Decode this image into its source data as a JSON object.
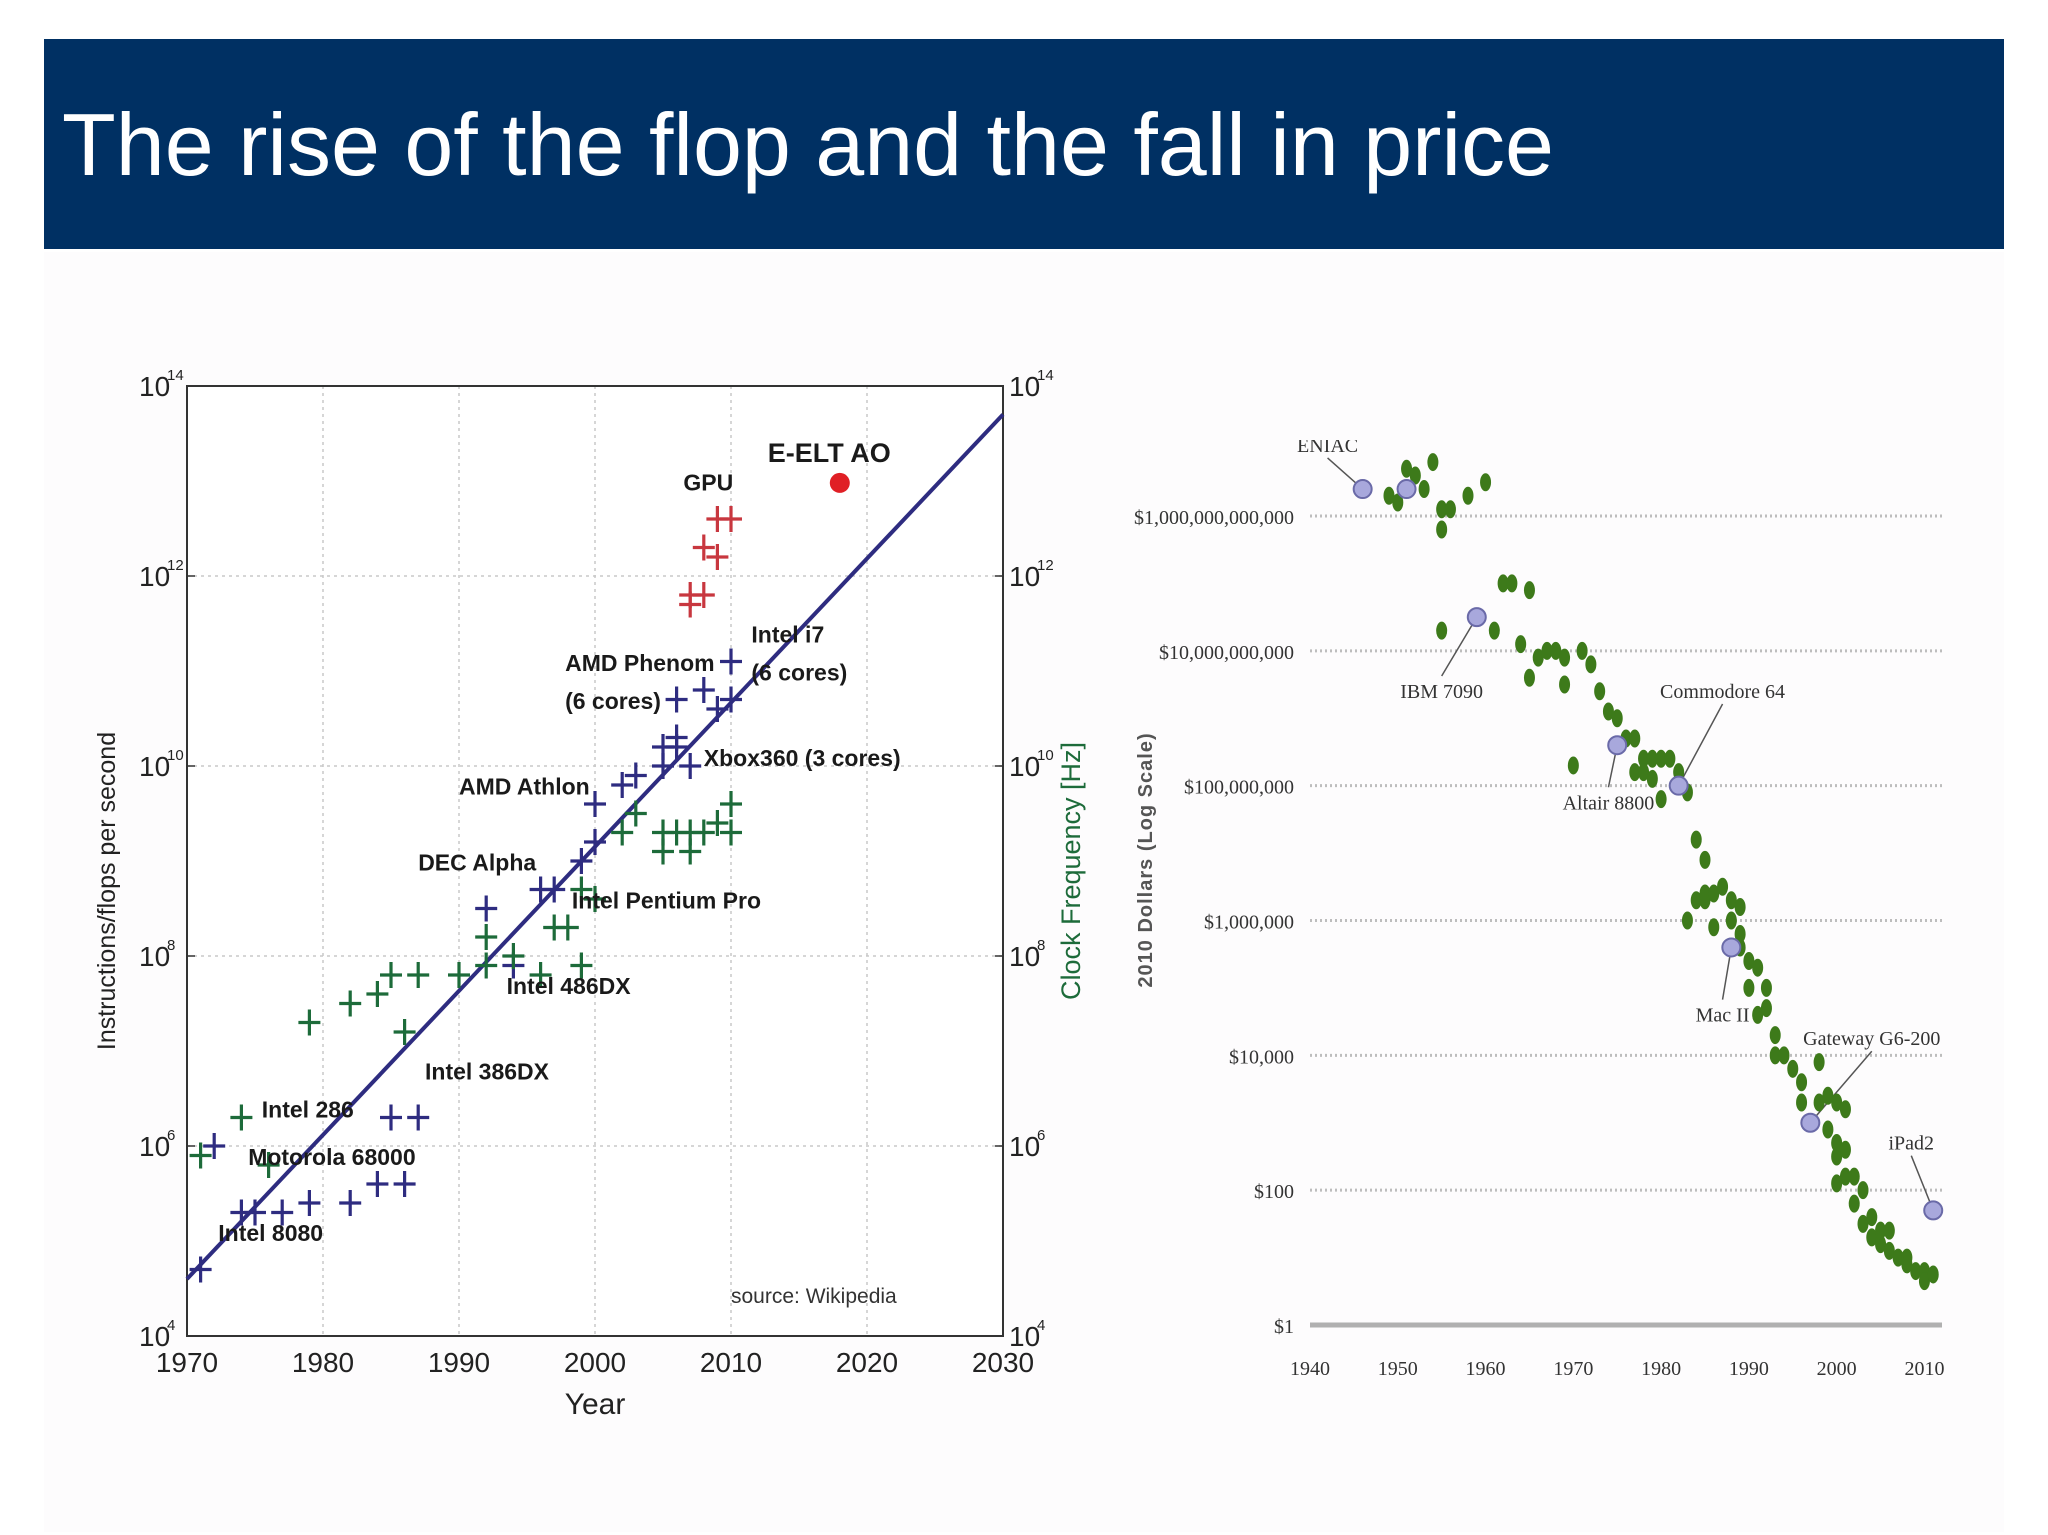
{
  "slide": {
    "title": "The rise of the flop and the fall in price"
  },
  "colors": {
    "title_bar": "#003063",
    "cpu_flops": "#2e2c80",
    "clock_freq": "#1d6b3a",
    "gpu": "#c8373f",
    "trend_line": "#2e2c80",
    "eelt_point": "#e01f25",
    "price_points": "#3d7a1a",
    "price_highlight": "#a8a8dc"
  },
  "chart_data": [
    {
      "type": "scatter",
      "ylabel": "Instructions/flops per second",
      "y2label": "Clock Frequency [Hz]",
      "xlabel": "Year",
      "xlim": [
        1970,
        2030
      ],
      "ylim_log10": [
        4,
        14
      ],
      "y2lim_log10": [
        4,
        14
      ],
      "x_ticks": [
        "1970",
        "1980",
        "1990",
        "2000",
        "2010",
        "2020",
        "2030"
      ],
      "y_tick_exponents": [
        "4",
        "6",
        "8",
        "10",
        "12",
        "14"
      ],
      "y_tick_base": "10",
      "y_scale": "log",
      "grid": true,
      "source": "source: Wikipedia",
      "trend_line": {
        "from": [
          1970,
          4.6
        ],
        "to": [
          2030,
          13.7
        ]
      },
      "series": [
        {
          "marker": "plus",
          "color": "#2e2c80",
          "points": [
            [
              1971,
              4.7
            ],
            [
              1972,
              6.0
            ],
            [
              1974,
              5.3
            ],
            [
              1975,
              5.3
            ],
            [
              1977,
              5.3
            ],
            [
              1979,
              5.4
            ],
            [
              1982,
              5.4
            ],
            [
              1984,
              5.6
            ],
            [
              1985,
              6.3
            ],
            [
              1986,
              5.6
            ],
            [
              1987,
              6.3
            ],
            [
              1992,
              8.5
            ],
            [
              1994,
              7.9
            ],
            [
              1996,
              8.7
            ],
            [
              1997,
              8.7
            ],
            [
              1999,
              9.0
            ],
            [
              2000,
              9.2
            ],
            [
              2000,
              9.6
            ],
            [
              2002,
              9.8
            ],
            [
              2003,
              9.9
            ],
            [
              2005,
              10.0
            ],
            [
              2005,
              10.2
            ],
            [
              2006,
              10.2
            ],
            [
              2006,
              10.7
            ],
            [
              2006,
              10.3
            ],
            [
              2007,
              10.0
            ],
            [
              2008,
              10.8
            ],
            [
              2009,
              10.6
            ],
            [
              2010,
              10.7
            ],
            [
              2010,
              11.1
            ]
          ]
        },
        {
          "marker": "plus",
          "color": "#1d6b3a",
          "points": [
            [
              1971,
              5.9
            ],
            [
              1974,
              6.3
            ],
            [
              1976,
              5.8
            ],
            [
              1979,
              7.3
            ],
            [
              1982,
              7.5
            ],
            [
              1984,
              7.6
            ],
            [
              1985,
              7.8
            ],
            [
              1986,
              7.2
            ],
            [
              1987,
              7.8
            ],
            [
              1990,
              7.8
            ],
            [
              1992,
              8.2
            ],
            [
              1992,
              7.9
            ],
            [
              1994,
              8.0
            ],
            [
              1996,
              7.8
            ],
            [
              1997,
              8.3
            ],
            [
              1998,
              8.3
            ],
            [
              1999,
              8.7
            ],
            [
              1999,
              7.9
            ],
            [
              2000,
              8.6
            ],
            [
              2002,
              9.3
            ],
            [
              2003,
              9.5
            ],
            [
              2005,
              9.3
            ],
            [
              2005,
              9.1
            ],
            [
              2006,
              9.3
            ],
            [
              2007,
              9.1
            ],
            [
              2007,
              9.3
            ],
            [
              2008,
              9.3
            ],
            [
              2009,
              9.4
            ],
            [
              2010,
              9.3
            ],
            [
              2010,
              9.6
            ]
          ]
        },
        {
          "marker": "plus",
          "color": "#c8373f",
          "points": [
            [
              2007,
              11.7
            ],
            [
              2007,
              11.8
            ],
            [
              2008,
              11.8
            ],
            [
              2008,
              12.3
            ],
            [
              2009,
              12.2
            ],
            [
              2009,
              12.6
            ],
            [
              2010,
              12.6
            ]
          ]
        },
        {
          "marker": "dot",
          "color": "#e01f25",
          "points": [
            [
              2018,
              12.98
            ]
          ]
        }
      ],
      "annotations": [
        {
          "text": "E-ELT AO",
          "x": 2012.7,
          "y": 13.2,
          "size": 27
        },
        {
          "text": "GPU",
          "x": 2006.5,
          "y": 12.9,
          "size": 23
        },
        {
          "text": "Intel i7",
          "x": 2011.5,
          "y": 11.3,
          "size": 23
        },
        {
          "text": "(6 cores)",
          "x": 2011.5,
          "y": 10.9,
          "size": 23
        },
        {
          "text": "AMD Phenom",
          "x": 1997.8,
          "y": 11.0,
          "size": 23
        },
        {
          "text": "(6 cores)",
          "x": 1997.8,
          "y": 10.6,
          "size": 23
        },
        {
          "text": "Xbox360 (3 cores)",
          "x": 2008.0,
          "y": 10.0,
          "size": 23
        },
        {
          "text": "AMD Athlon",
          "x": 1990.0,
          "y": 9.7,
          "size": 23
        },
        {
          "text": "DEC Alpha",
          "x": 1987.0,
          "y": 8.9,
          "size": 23
        },
        {
          "text": "Intel Pentium Pro",
          "x": 1998.3,
          "y": 8.5,
          "size": 23
        },
        {
          "text": "Intel 486DX",
          "x": 1993.5,
          "y": 7.6,
          "size": 23
        },
        {
          "text": "Intel 386DX",
          "x": 1987.5,
          "y": 6.7,
          "size": 23
        },
        {
          "text": "Intel 286",
          "x": 1975.5,
          "y": 6.3,
          "size": 23
        },
        {
          "text": "Motorola 68000",
          "x": 1974.5,
          "y": 5.8,
          "size": 23
        },
        {
          "text": "Intel 8080",
          "x": 1972.3,
          "y": 5.0,
          "size": 23
        }
      ]
    },
    {
      "type": "scatter",
      "ylabel": "2010 Dollars (Log Scale)",
      "xlabel": "",
      "xlim": [
        1940,
        2012
      ],
      "x_ticks": [
        "1940",
        "1950",
        "1960",
        "1970",
        "1980",
        "1990",
        "2000",
        "2010"
      ],
      "y_ticks": [
        "$1,000,000,000,000",
        "$10,000,000,000",
        "$100,000,000",
        "$1,000,000",
        "$10,000",
        "$100",
        "$1"
      ],
      "y_scale": "log",
      "grid": true,
      "series": [
        {
          "marker": "dot",
          "color": "#3d7a1a",
          "points": [
            [
              1949,
              12.3
            ],
            [
              1950,
              12.2
            ],
            [
              1951,
              12.7
            ],
            [
              1952,
              12.6
            ],
            [
              1953,
              12.4
            ],
            [
              1954,
              12.8
            ],
            [
              1955,
              12.1
            ],
            [
              1955,
              11.8
            ],
            [
              1956,
              12.1
            ],
            [
              1958,
              12.3
            ],
            [
              1960,
              12.5
            ],
            [
              1955,
              10.3
            ],
            [
              1961,
              10.3
            ],
            [
              1962,
              11.0
            ],
            [
              1963,
              11.0
            ],
            [
              1964,
              10.1
            ],
            [
              1965,
              10.9
            ],
            [
              1965,
              9.6
            ],
            [
              1966,
              9.9
            ],
            [
              1967,
              10.0
            ],
            [
              1968,
              10.0
            ],
            [
              1969,
              9.5
            ],
            [
              1969,
              9.9
            ],
            [
              1970,
              8.3
            ],
            [
              1971,
              10.0
            ],
            [
              1972,
              9.8
            ],
            [
              1973,
              9.4
            ],
            [
              1974,
              9.1
            ],
            [
              1975,
              8.6
            ],
            [
              1975,
              9.0
            ],
            [
              1976,
              8.7
            ],
            [
              1977,
              8.2
            ],
            [
              1977,
              8.7
            ],
            [
              1978,
              8.4
            ],
            [
              1978,
              8.2
            ],
            [
              1979,
              8.1
            ],
            [
              1979,
              8.4
            ],
            [
              1980,
              7.8
            ],
            [
              1980,
              8.4
            ],
            [
              1981,
              8.4
            ],
            [
              1982,
              8.2
            ],
            [
              1983,
              7.9
            ],
            [
              1983,
              6.0
            ],
            [
              1984,
              6.3
            ],
            [
              1984,
              7.2
            ],
            [
              1985,
              6.3
            ],
            [
              1985,
              6.4
            ],
            [
              1985,
              6.9
            ],
            [
              1986,
              6.4
            ],
            [
              1986,
              5.9
            ],
            [
              1987,
              6.5
            ],
            [
              1988,
              6.0
            ],
            [
              1988,
              6.3
            ],
            [
              1989,
              5.8
            ],
            [
              1989,
              6.2
            ],
            [
              1989,
              5.6
            ],
            [
              1990,
              5.0
            ],
            [
              1990,
              5.4
            ],
            [
              1991,
              5.3
            ],
            [
              1991,
              4.6
            ],
            [
              1992,
              4.7
            ],
            [
              1992,
              5.0
            ],
            [
              1993,
              4.3
            ],
            [
              1993,
              4.0
            ],
            [
              1994,
              4.0
            ],
            [
              1995,
              3.8
            ],
            [
              1996,
              3.6
            ],
            [
              1996,
              3.3
            ],
            [
              1997,
              3.0
            ],
            [
              1998,
              3.3
            ],
            [
              1999,
              3.4
            ],
            [
              1999,
              2.9
            ],
            [
              2000,
              3.3
            ],
            [
              2000,
              2.7
            ],
            [
              2000,
              2.5
            ],
            [
              2001,
              2.6
            ],
            [
              2001,
              2.2
            ],
            [
              2002,
              2.2
            ],
            [
              2002,
              1.8
            ],
            [
              2003,
              2.0
            ],
            [
              2003,
              1.5
            ],
            [
              2004,
              1.6
            ],
            [
              2004,
              1.3
            ],
            [
              2005,
              1.2
            ],
            [
              2005,
              1.4
            ],
            [
              2006,
              1.4
            ],
            [
              2006,
              1.1
            ],
            [
              2007,
              1.0
            ],
            [
              2008,
              1.0
            ],
            [
              2008,
              0.9
            ],
            [
              2009,
              0.8
            ],
            [
              2010,
              0.8
            ],
            [
              2010,
              0.65
            ],
            [
              2011,
              0.75
            ],
            [
              2000,
              2.1
            ],
            [
              2001,
              3.2
            ],
            [
              1998,
              3.9
            ]
          ]
        },
        {
          "marker": "highlight",
          "color": "#a8a8dc",
          "points": [
            [
              1946,
              12.4
            ],
            [
              1951,
              12.4
            ],
            [
              1959,
              10.5
            ],
            [
              1975,
              8.6
            ],
            [
              1982,
              8.0
            ],
            [
              1988,
              5.6
            ],
            [
              1997,
              3.0
            ],
            [
              2011,
              1.7
            ]
          ]
        }
      ],
      "annotations": [
        {
          "text": "ENIAC",
          "x": 1946,
          "y": 12.4,
          "dx": -4,
          "dy": 0.55
        },
        {
          "text": "IBM 7090",
          "x": 1959,
          "y": 10.5,
          "dx": -4,
          "dy": -1.2
        },
        {
          "text": "Commodore 64",
          "x": 1982,
          "y": 8.0,
          "dx": 5,
          "dy": 1.3
        },
        {
          "text": "Altair 8800",
          "x": 1975,
          "y": 8.6,
          "dx": -1,
          "dy": -0.95
        },
        {
          "text": "Mac II",
          "x": 1988,
          "y": 5.6,
          "dx": -1,
          "dy": -1.1
        },
        {
          "text": "Gateway G6-200",
          "x": 1997,
          "y": 3.0,
          "dx": 7,
          "dy": 1.15
        },
        {
          "text": "iPad2",
          "x": 2011,
          "y": 1.7,
          "dx": -2.5,
          "dy": 0.9
        }
      ]
    }
  ]
}
